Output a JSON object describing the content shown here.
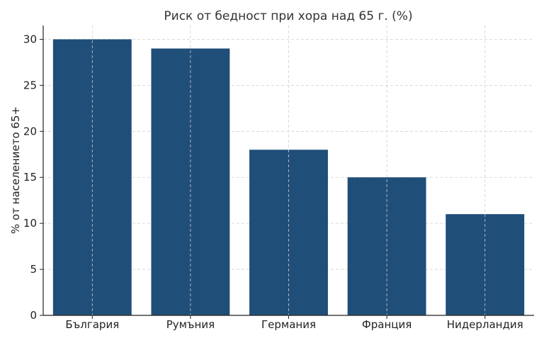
{
  "chart_data": {
    "type": "bar",
    "title": "Риск от бедност при хора над 65 г. (%)",
    "xlabel": "",
    "ylabel": "% от населението 65+",
    "categories": [
      "България",
      "Румъния",
      "Германия",
      "Франция",
      "Нидерландия"
    ],
    "values": [
      30,
      29,
      18,
      15,
      11
    ],
    "ylim": [
      0,
      31.5
    ],
    "yticks": [
      0,
      5,
      10,
      15,
      20,
      25,
      30
    ],
    "grid": true,
    "bar_color": "#1f4e79"
  }
}
